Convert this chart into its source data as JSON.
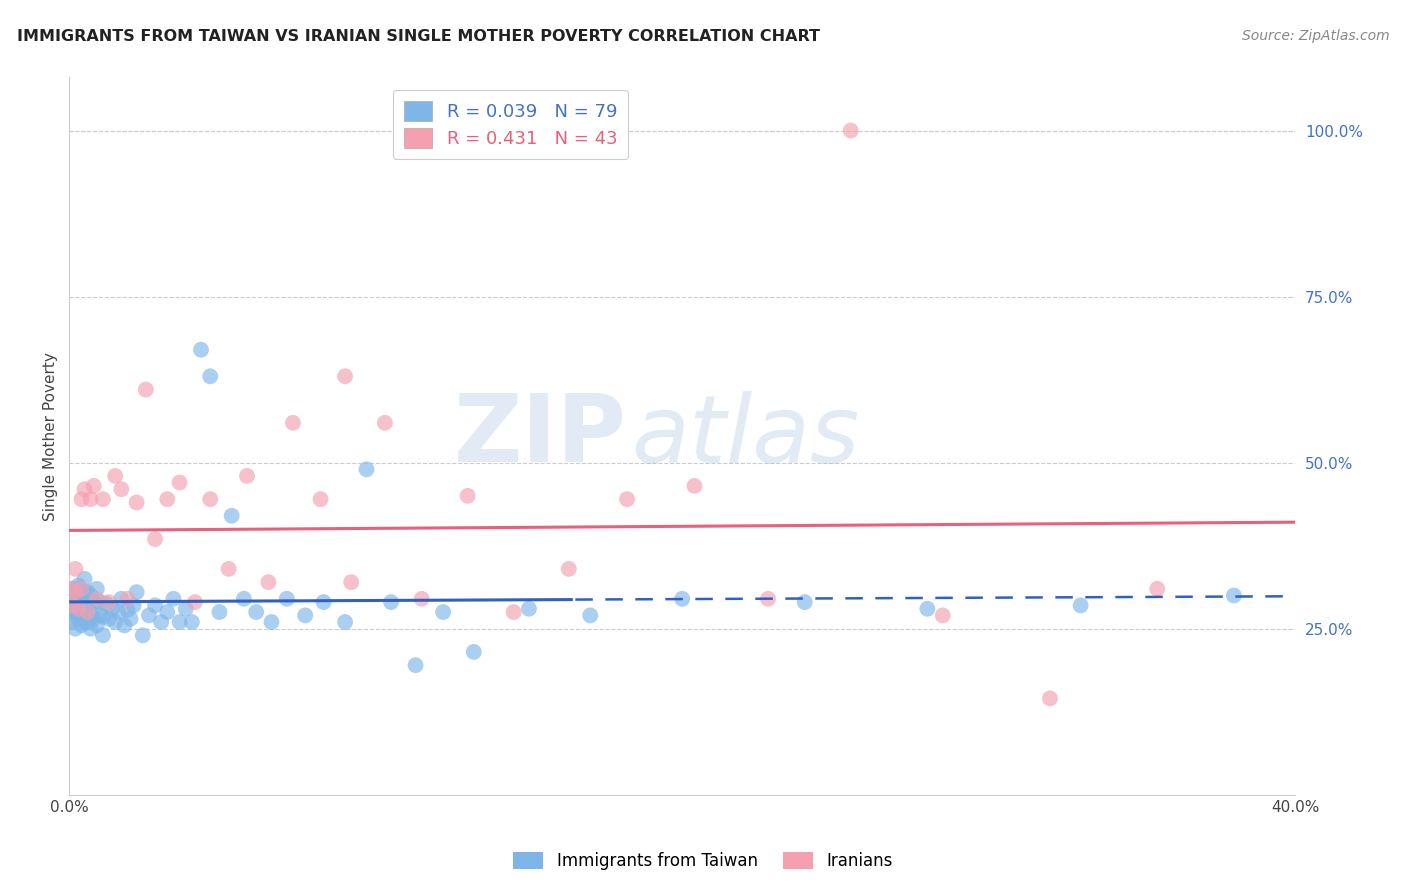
{
  "title": "IMMIGRANTS FROM TAIWAN VS IRANIAN SINGLE MOTHER POVERTY CORRELATION CHART",
  "source": "Source: ZipAtlas.com",
  "ylabel": "Single Mother Poverty",
  "xlim": [
    0.0,
    0.4
  ],
  "ylim": [
    0.0,
    1.08
  ],
  "x_ticks": [
    0.0,
    0.05,
    0.1,
    0.15,
    0.2,
    0.25,
    0.3,
    0.35,
    0.4
  ],
  "x_tick_labels": [
    "0.0%",
    "",
    "",
    "",
    "",
    "",
    "",
    "",
    "40.0%"
  ],
  "y_ticks_right": [
    0.25,
    0.5,
    0.75,
    1.0
  ],
  "y_tick_labels_right": [
    "25.0%",
    "50.0%",
    "75.0%",
    "100.0%"
  ],
  "grid_color": "#cccccc",
  "taiwan_color": "#7EB6E8",
  "iranian_color": "#F4A0B0",
  "taiwan_R": 0.039,
  "taiwan_N": 79,
  "iranian_R": 0.431,
  "iranian_N": 43,
  "taiwan_line_color": "#3060C0",
  "iranian_line_color": "#E8607A",
  "background_color": "#ffffff",
  "taiwan_x": [
    0.001,
    0.001,
    0.001,
    0.001,
    0.002,
    0.002,
    0.002,
    0.002,
    0.002,
    0.002,
    0.003,
    0.003,
    0.003,
    0.003,
    0.004,
    0.004,
    0.004,
    0.004,
    0.005,
    0.005,
    0.005,
    0.005,
    0.006,
    0.006,
    0.006,
    0.007,
    0.007,
    0.007,
    0.008,
    0.008,
    0.009,
    0.009,
    0.01,
    0.01,
    0.011,
    0.011,
    0.012,
    0.013,
    0.014,
    0.015,
    0.016,
    0.017,
    0.018,
    0.019,
    0.02,
    0.021,
    0.022,
    0.024,
    0.026,
    0.028,
    0.03,
    0.032,
    0.034,
    0.036,
    0.038,
    0.04,
    0.043,
    0.046,
    0.049,
    0.053,
    0.057,
    0.061,
    0.066,
    0.071,
    0.077,
    0.083,
    0.09,
    0.097,
    0.105,
    0.113,
    0.122,
    0.132,
    0.15,
    0.17,
    0.2,
    0.24,
    0.28,
    0.33,
    0.38
  ],
  "taiwan_y": [
    0.28,
    0.31,
    0.26,
    0.295,
    0.27,
    0.29,
    0.31,
    0.25,
    0.275,
    0.295,
    0.265,
    0.29,
    0.315,
    0.28,
    0.255,
    0.28,
    0.305,
    0.27,
    0.26,
    0.285,
    0.305,
    0.325,
    0.26,
    0.285,
    0.305,
    0.25,
    0.275,
    0.3,
    0.265,
    0.29,
    0.255,
    0.31,
    0.27,
    0.29,
    0.24,
    0.268,
    0.288,
    0.265,
    0.28,
    0.26,
    0.275,
    0.295,
    0.255,
    0.278,
    0.265,
    0.285,
    0.305,
    0.24,
    0.27,
    0.285,
    0.26,
    0.275,
    0.295,
    0.26,
    0.28,
    0.26,
    0.67,
    0.63,
    0.275,
    0.42,
    0.295,
    0.275,
    0.26,
    0.295,
    0.27,
    0.29,
    0.26,
    0.49,
    0.29,
    0.195,
    0.275,
    0.215,
    0.28,
    0.27,
    0.295,
    0.29,
    0.28,
    0.285,
    0.3
  ],
  "iranian_x": [
    0.001,
    0.001,
    0.002,
    0.002,
    0.003,
    0.004,
    0.004,
    0.005,
    0.006,
    0.007,
    0.008,
    0.009,
    0.011,
    0.013,
    0.015,
    0.017,
    0.019,
    0.022,
    0.025,
    0.028,
    0.032,
    0.036,
    0.041,
    0.046,
    0.052,
    0.058,
    0.065,
    0.073,
    0.082,
    0.092,
    0.103,
    0.115,
    0.13,
    0.145,
    0.163,
    0.182,
    0.204,
    0.228,
    0.255,
    0.285,
    0.32,
    0.355,
    0.09
  ],
  "iranian_y": [
    0.285,
    0.31,
    0.305,
    0.34,
    0.28,
    0.31,
    0.445,
    0.46,
    0.275,
    0.445,
    0.465,
    0.295,
    0.445,
    0.29,
    0.48,
    0.46,
    0.295,
    0.44,
    0.61,
    0.385,
    0.445,
    0.47,
    0.29,
    0.445,
    0.34,
    0.48,
    0.32,
    0.56,
    0.445,
    0.32,
    0.56,
    0.295,
    0.45,
    0.275,
    0.34,
    0.445,
    0.465,
    0.295,
    1.0,
    0.27,
    0.145,
    0.31,
    0.63
  ]
}
